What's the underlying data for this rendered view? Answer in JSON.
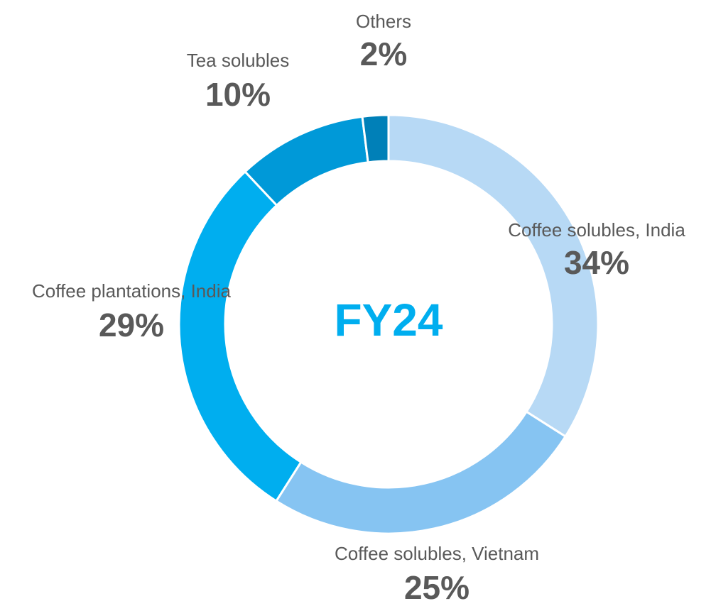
{
  "chart_data": {
    "type": "donut",
    "center_label": "FY24",
    "categories": [
      "Coffee solubles, India",
      "Coffee solubles, Vietnam",
      "Coffee plantations, India",
      "Tea solubles",
      "Others"
    ],
    "values": [
      34,
      25,
      29,
      10,
      2
    ],
    "value_labels": [
      "34%",
      "25%",
      "29%",
      "10%",
      "2%"
    ],
    "colors": [
      "#b7d9f5",
      "#86c4f2",
      "#00aeef",
      "#0099d8",
      "#0080b8"
    ]
  }
}
